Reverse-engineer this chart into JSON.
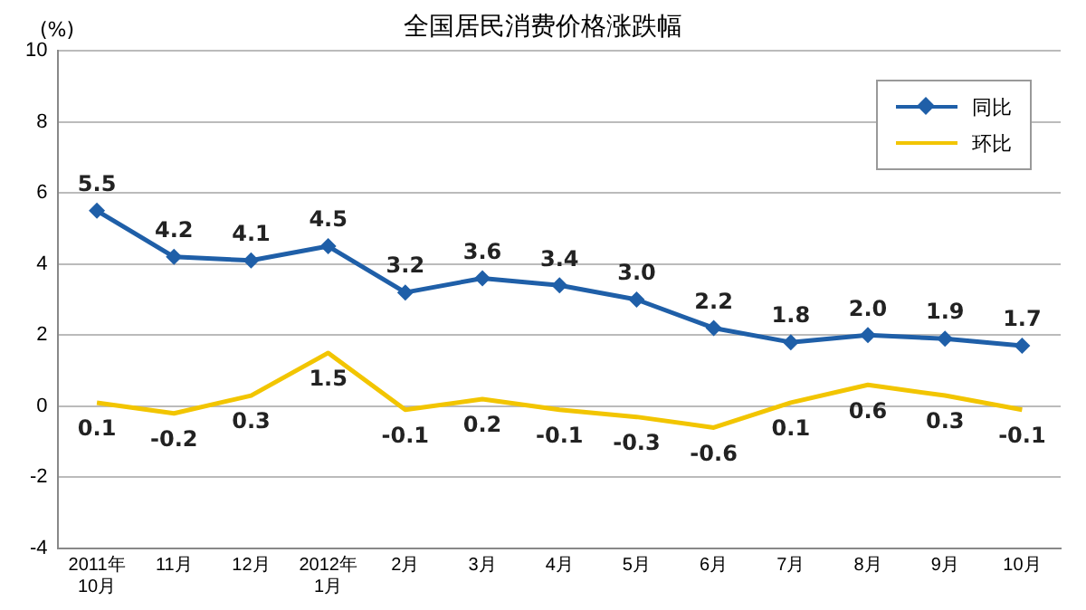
{
  "chart_data": {
    "type": "line",
    "title": "全国居民消费价格涨跌幅",
    "ylabel": "(%)",
    "categories": [
      "2011年\n10月",
      "11月",
      "12月",
      "2012年\n1月",
      "2月",
      "3月",
      "4月",
      "5月",
      "6月",
      "7月",
      "8月",
      "9月",
      "10月"
    ],
    "series": [
      {
        "name": "同比",
        "color": "#1f5fa8",
        "marker": "diamond",
        "values": [
          5.5,
          4.2,
          4.1,
          4.5,
          3.2,
          3.6,
          3.4,
          3.0,
          2.2,
          1.8,
          2.0,
          1.9,
          1.7
        ],
        "value_labels": [
          "5.5",
          "4.2",
          "4.1",
          "4.5",
          "3.2",
          "3.6",
          "3.4",
          "3.0",
          "2.2",
          "1.8",
          "2.0",
          "1.9",
          "1.7"
        ]
      },
      {
        "name": "环比",
        "color": "#f2c500",
        "marker": "none",
        "values": [
          0.1,
          -0.2,
          0.3,
          1.5,
          -0.1,
          0.2,
          -0.1,
          -0.3,
          -0.6,
          0.1,
          0.6,
          0.3,
          -0.1
        ],
        "value_labels": [
          "0.1",
          "-0.2",
          "0.3",
          "1.5",
          "-0.1",
          "0.2",
          "-0.1",
          "-0.3",
          "-0.6",
          "0.1",
          "0.6",
          "0.3",
          "-0.1"
        ]
      }
    ],
    "ylim": [
      -4,
      10
    ],
    "yticks": [
      -4,
      -2,
      0,
      2,
      4,
      6,
      8,
      10
    ],
    "grid": "y",
    "legend": "top right"
  }
}
